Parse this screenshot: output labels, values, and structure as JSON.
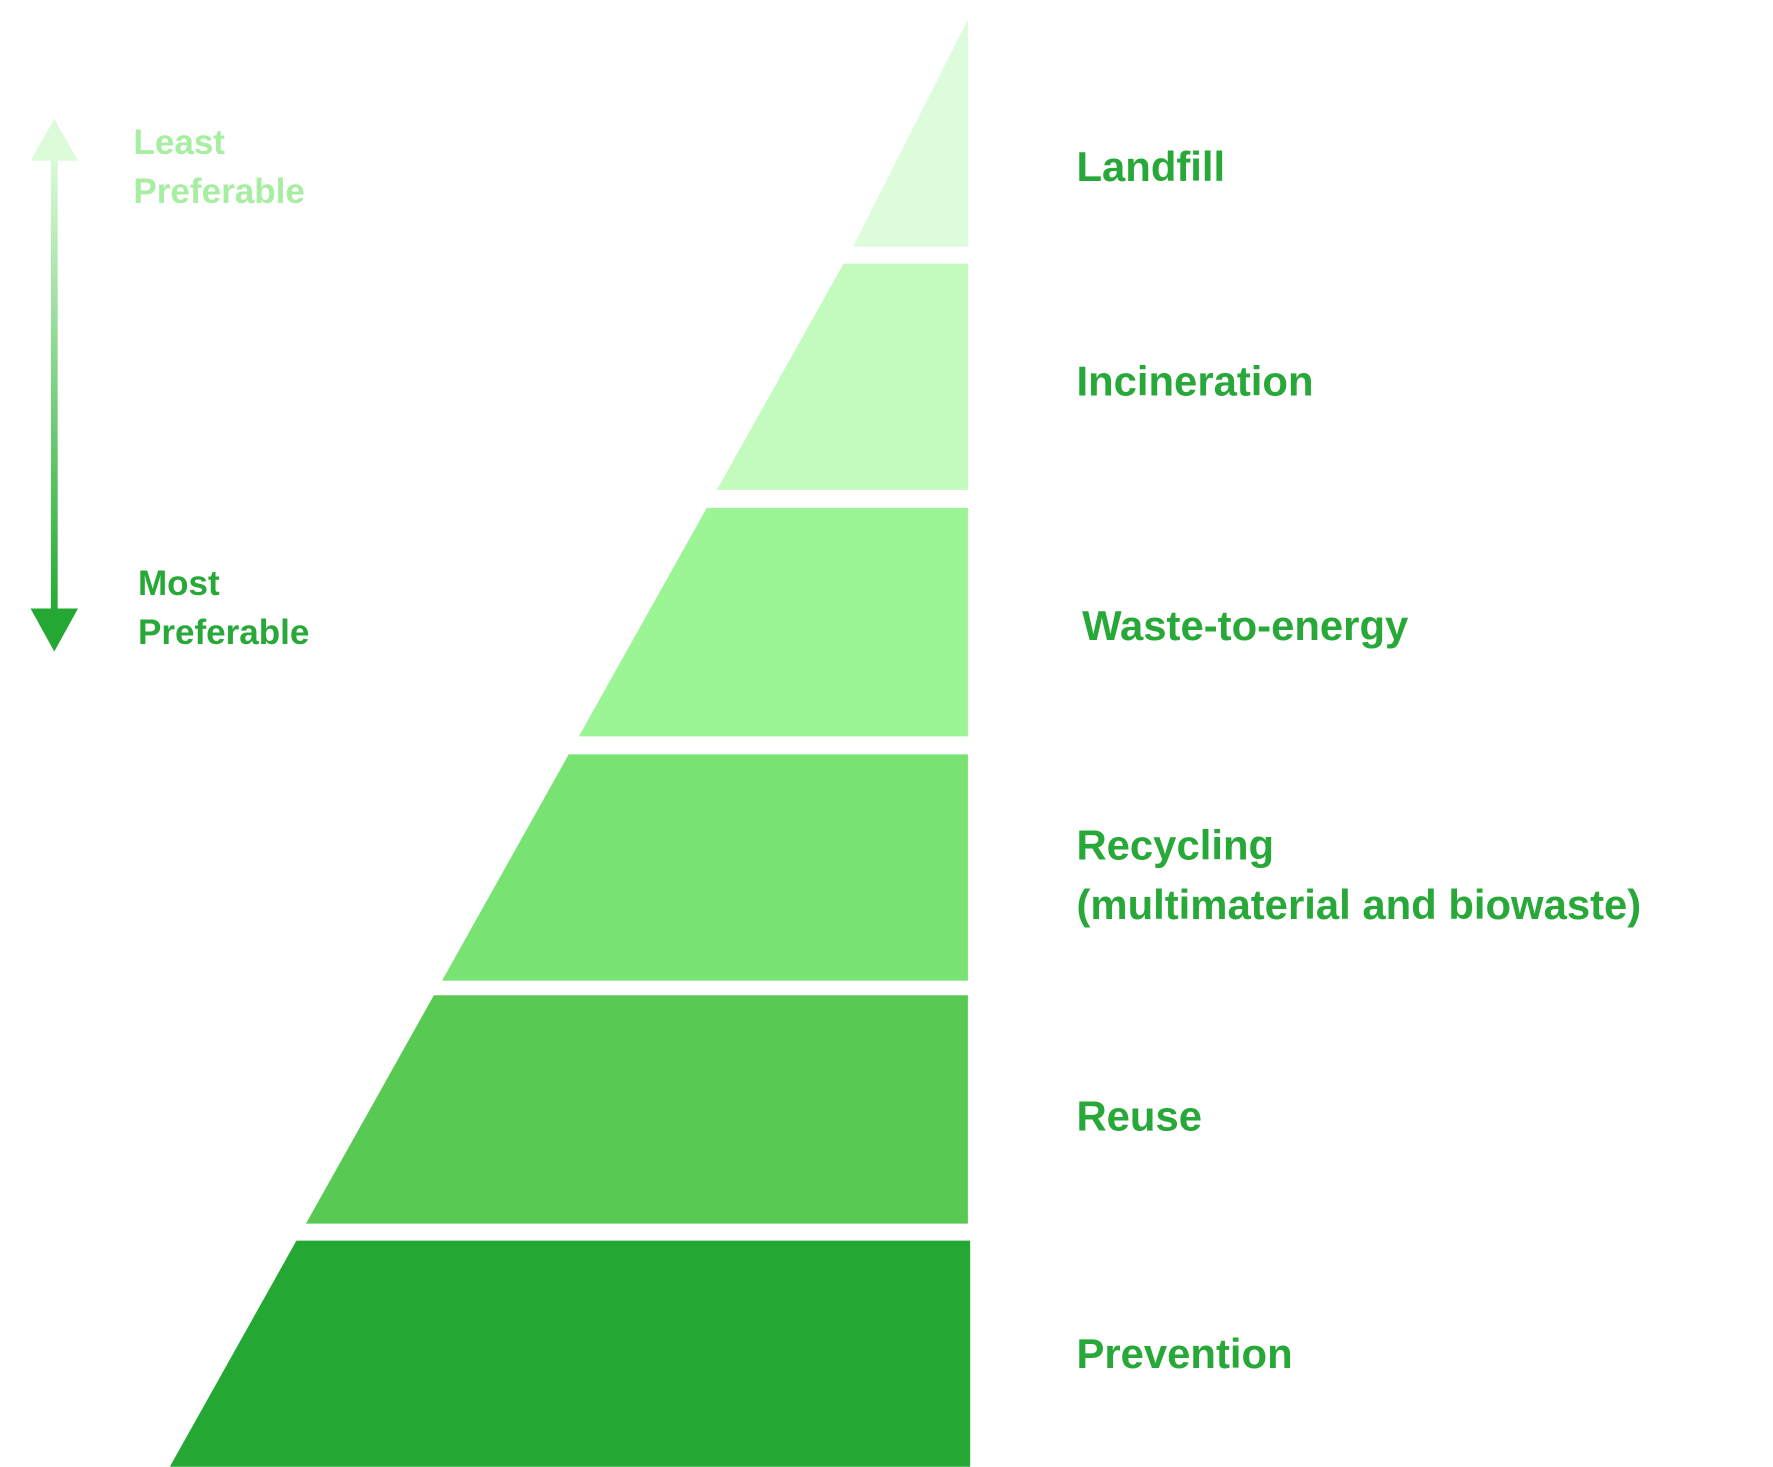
{
  "scale": {
    "top": [
      "Least",
      "Preferable"
    ],
    "bottom": [
      "Most",
      "Preferable"
    ]
  },
  "levels": [
    {
      "lines": [
        "Landfill"
      ]
    },
    {
      "lines": [
        "Incineration"
      ]
    },
    {
      "lines": [
        "Waste-to-energy"
      ]
    },
    {
      "lines": [
        "Recycling",
        "(multimaterial and biowaste)"
      ]
    },
    {
      "lines": [
        "Reuse"
      ]
    },
    {
      "lines": [
        "Prevention"
      ]
    }
  ]
}
